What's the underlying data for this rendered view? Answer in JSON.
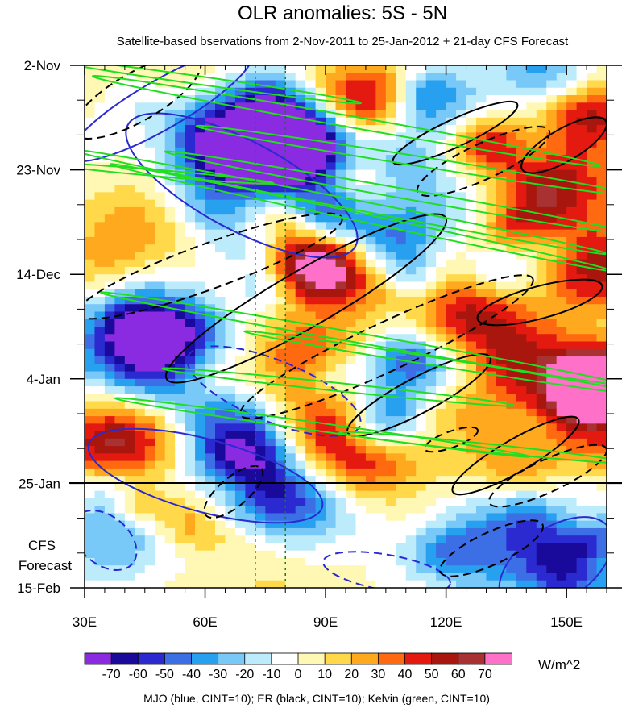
{
  "chart_data": {
    "type": "heatmap",
    "title": "OLR anomalies: 5S - 5N",
    "subtitle": "Satellite-based bservations from 2-Nov-2011 to 25-Jan-2012 + 21-day CFS Forecast",
    "x_ticks": [
      "30E",
      "60E",
      "90E",
      "120E",
      "150E"
    ],
    "x_tick_values": [
      30,
      60,
      90,
      120,
      150
    ],
    "xlim": [
      30,
      160
    ],
    "y_ticks": [
      "2-Nov",
      "23-Nov",
      "14-Dec",
      "4-Jan",
      "25-Jan",
      "15-Feb"
    ],
    "y_tick_days": [
      0,
      21,
      42,
      63,
      84,
      105
    ],
    "ylim_days": [
      0,
      105
    ],
    "observation_end": "25-Jan",
    "forecast_label_line1": "CFS",
    "forecast_label_line2": "Forecast",
    "reference_lines_x": [
      72.5,
      80
    ],
    "colorbar": {
      "unit": "W/m^2",
      "levels": [
        "-70",
        "-60",
        "-50",
        "-40",
        "-30",
        "-20",
        "-10",
        "0",
        "10",
        "20",
        "30",
        "40",
        "50",
        "60",
        "70"
      ],
      "colors": [
        "#8a2be2",
        "#1a0a9c",
        "#2a2ad0",
        "#3c6ee6",
        "#28a0f0",
        "#78c8f8",
        "#bcecfc",
        "#ffffff",
        "#fff8b4",
        "#ffd94a",
        "#ffa91f",
        "#ff6a10",
        "#e41a10",
        "#a8160e",
        "#a83232",
        "#ff70c8"
      ]
    },
    "caption": "MJO (blue, CINT=10); ER (black, CINT=10); Kelvin (green, CINT=10)",
    "contour_colors": {
      "mjo": "#2a2ad0",
      "er": "#000000",
      "kelvin": "#22dd22"
    }
  }
}
